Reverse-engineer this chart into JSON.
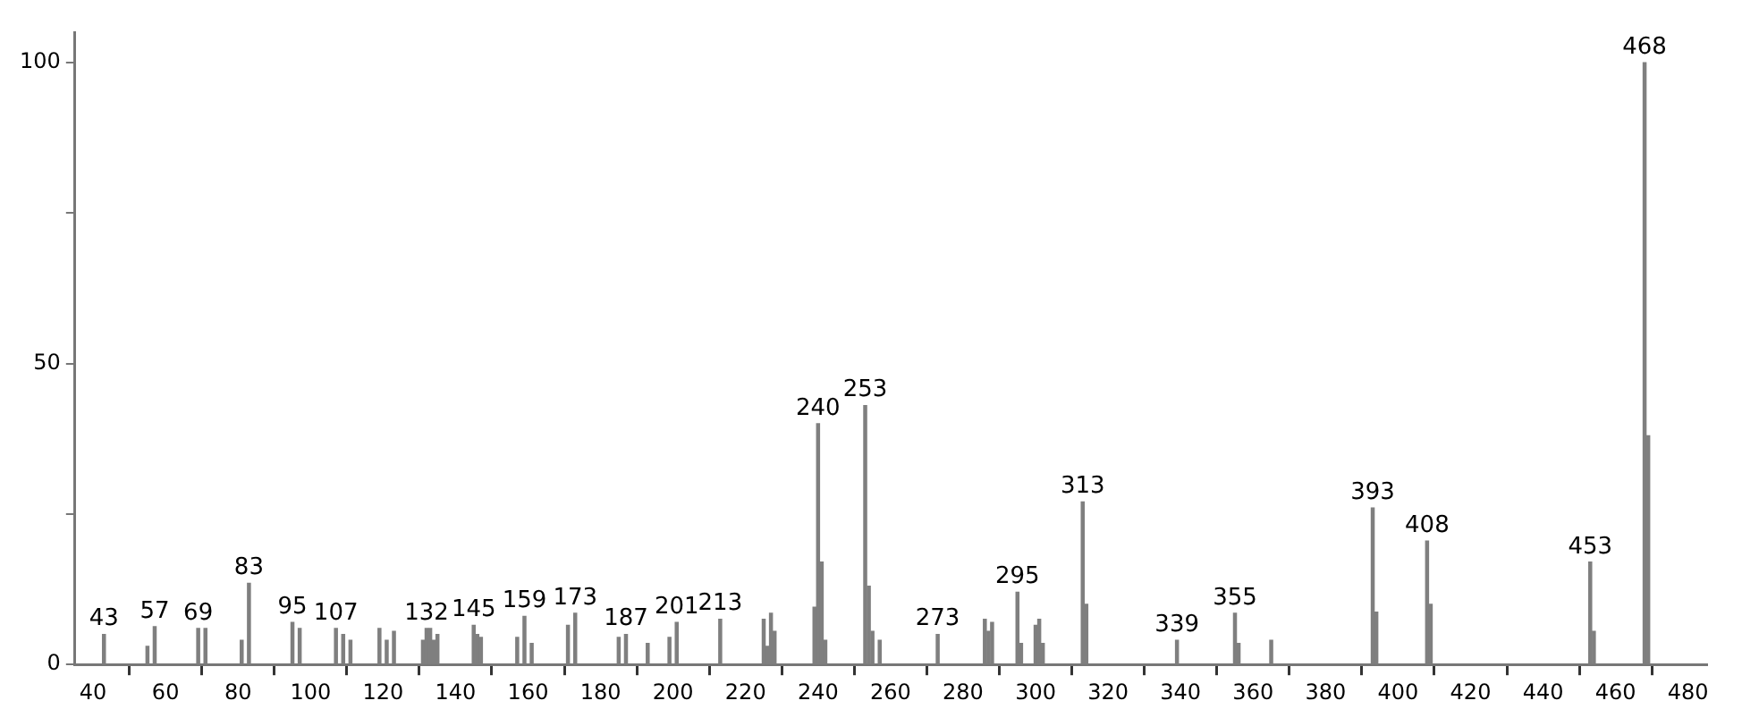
{
  "chart_data": {
    "type": "bar",
    "x": [
      43,
      55,
      57,
      69,
      71,
      81,
      83,
      95,
      97,
      107,
      109,
      111,
      119,
      121,
      123,
      131,
      132,
      133,
      134,
      135,
      145,
      146,
      147,
      157,
      159,
      161,
      171,
      173,
      185,
      187,
      193,
      199,
      201,
      213,
      225,
      226,
      227,
      228,
      239,
      240,
      241,
      242,
      253,
      254,
      255,
      257,
      273,
      286,
      287,
      288,
      295,
      296,
      300,
      301,
      302,
      313,
      314,
      339,
      355,
      356,
      365,
      393,
      394,
      408,
      409,
      453,
      454,
      468,
      469
    ],
    "values": [
      5,
      3,
      6.3,
      6,
      6,
      4,
      13.5,
      7,
      6,
      6,
      5,
      4,
      6,
      4,
      5.5,
      4,
      6,
      6,
      4,
      5,
      6.5,
      5,
      4.5,
      4.5,
      8,
      3.5,
      6.5,
      8.5,
      4.5,
      5,
      3.5,
      4.5,
      7,
      7.5,
      7.5,
      3,
      8.5,
      5.5,
      9.5,
      40,
      17,
      4,
      43,
      13,
      5.5,
      4,
      5,
      7.5,
      5.5,
      7,
      12,
      3.5,
      6.5,
      7.5,
      3.5,
      27,
      10,
      4,
      8.5,
      3.5,
      4,
      26,
      8.7,
      20.5,
      10,
      17,
      5.5,
      100,
      38
    ],
    "annotations": [
      {
        "text": "43",
        "x": 43,
        "y": 5
      },
      {
        "text": "57",
        "x": 57,
        "y": 6.3
      },
      {
        "text": "69",
        "x": 69,
        "y": 6
      },
      {
        "text": "83",
        "x": 83,
        "y": 13.5
      },
      {
        "text": "95",
        "x": 95,
        "y": 7
      },
      {
        "text": "107",
        "x": 107,
        "y": 6
      },
      {
        "text": "132",
        "x": 132,
        "y": 6
      },
      {
        "text": "145",
        "x": 145,
        "y": 6.5
      },
      {
        "text": "159",
        "x": 159,
        "y": 8
      },
      {
        "text": "173",
        "x": 173,
        "y": 8.5
      },
      {
        "text": "187",
        "x": 187,
        "y": 5
      },
      {
        "text": "201",
        "x": 201,
        "y": 7
      },
      {
        "text": "213",
        "x": 213,
        "y": 7.5
      },
      {
        "text": "240",
        "x": 240,
        "y": 40
      },
      {
        "text": "253",
        "x": 253,
        "y": 43
      },
      {
        "text": "273",
        "x": 273,
        "y": 5
      },
      {
        "text": "295",
        "x": 295,
        "y": 12
      },
      {
        "text": "313",
        "x": 313,
        "y": 27
      },
      {
        "text": "339",
        "x": 339,
        "y": 4
      },
      {
        "text": "355",
        "x": 355,
        "y": 8.5
      },
      {
        "text": "393",
        "x": 393,
        "y": 26
      },
      {
        "text": "408",
        "x": 408,
        "y": 20.5
      },
      {
        "text": "453",
        "x": 453,
        "y": 17
      },
      {
        "text": "468",
        "x": 468,
        "y": 100
      }
    ],
    "color": "#7f7f7f",
    "xlim": [
      35,
      485
    ],
    "xticks": [
      40,
      60,
      80,
      100,
      120,
      140,
      160,
      180,
      200,
      220,
      240,
      260,
      280,
      300,
      320,
      340,
      360,
      380,
      400,
      420,
      440,
      460,
      480
    ],
    "ylim": [
      0,
      105
    ],
    "yticks": [
      0,
      {
        "value": 25,
        "label": null
      },
      50,
      {
        "value": 75,
        "label": null
      },
      100
    ],
    "grid": false,
    "legend": false
  }
}
